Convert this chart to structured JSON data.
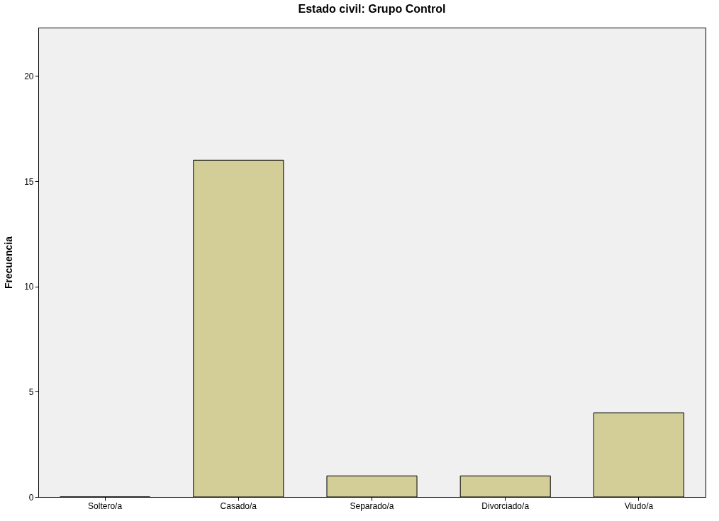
{
  "chart_data": {
    "type": "bar",
    "title": "Estado civil: Grupo Control",
    "ylabel": "Frecuencia",
    "categories": [
      "Soltero/a",
      "Casado/a",
      "Separado/a",
      "Divorciado/a",
      "Viudo/a"
    ],
    "values": [
      0,
      16,
      1,
      1,
      4
    ],
    "color": "#d3ce97",
    "ylim": [
      0,
      22.3
    ],
    "yticks": [
      0,
      5,
      10,
      15,
      20
    ],
    "grid": false
  }
}
